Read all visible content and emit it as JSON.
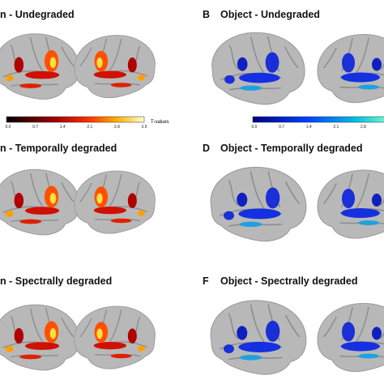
{
  "panels": [
    {
      "title": "n - Undegraded"
    },
    {
      "letter": "B",
      "title": "Object - Undegraded"
    },
    {
      "title": "n - Temporally degraded"
    },
    {
      "letter": "D",
      "title": "Object - Temporally degraded"
    },
    {
      "title": "n - Spectrally degraded"
    },
    {
      "letter": "F",
      "title": "Object - Spectrally degraded"
    }
  ],
  "colorbar_hot": {
    "ticks": [
      "0.0",
      "0.7",
      "1.4",
      "2.1",
      "2.8",
      "3.5"
    ],
    "label": "T-values"
  },
  "colorbar_cool": {
    "ticks": [
      "0.0",
      "0.7",
      "1.4",
      "2.1",
      "2.8"
    ]
  }
}
